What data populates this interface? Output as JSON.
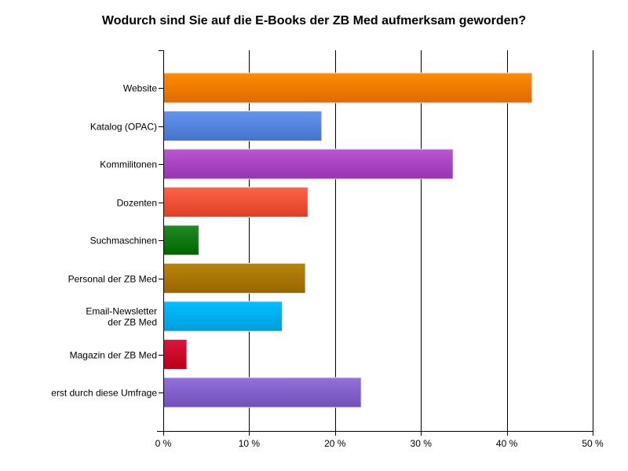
{
  "chart_data": {
    "type": "bar",
    "orientation": "horizontal",
    "title": "Wodurch sind Sie auf die E-Books der ZB Med aufmerksam geworden?",
    "xlabel": "",
    "ylabel": "",
    "xlim": [
      0,
      50
    ],
    "x_ticks": [
      0,
      10,
      20,
      30,
      40,
      50
    ],
    "x_tick_labels": [
      "0 %",
      "10 %",
      "20 %",
      "30 %",
      "40 %",
      "50 %"
    ],
    "grid": "vertical",
    "legend": "none",
    "categories": [
      "Website",
      "Katalog (OPAC)",
      "Kommilitonen",
      "Dozenten",
      "Suchmaschinen",
      "Personal der ZB Med",
      "Email-Newsletter der ZB Med",
      "Magazin der ZB Med",
      "erst durch diese Umfrage"
    ],
    "category_label_lines": [
      [
        "Website"
      ],
      [
        "Katalog (OPAC)"
      ],
      [
        "Kommilitonen"
      ],
      [
        "Dozenten"
      ],
      [
        "Suchmaschinen"
      ],
      [
        "Personal der ZB Med"
      ],
      [
        "Email-Newsletter",
        "der ZB Med"
      ],
      [
        "Magazin der ZB Med"
      ],
      [
        "erst durch diese Umfrage"
      ]
    ],
    "values": [
      42.9,
      18.4,
      33.7,
      16.8,
      4.1,
      16.5,
      13.8,
      2.7,
      23.0
    ],
    "unit": "%",
    "colors": [
      [
        "#ff8c00",
        "#dc6a00"
      ],
      [
        "#6495ed",
        "#4472cc"
      ],
      [
        "#ba55d3",
        "#9933b0"
      ],
      [
        "#ff6347",
        "#dd4125"
      ],
      [
        "#228b22",
        "#006400"
      ],
      [
        "#b8860b",
        "#986400"
      ],
      [
        "#00bfff",
        "#009ddd"
      ],
      [
        "#dc143c",
        "#ba001a"
      ],
      [
        "#9370db",
        "#7150b9"
      ]
    ]
  }
}
